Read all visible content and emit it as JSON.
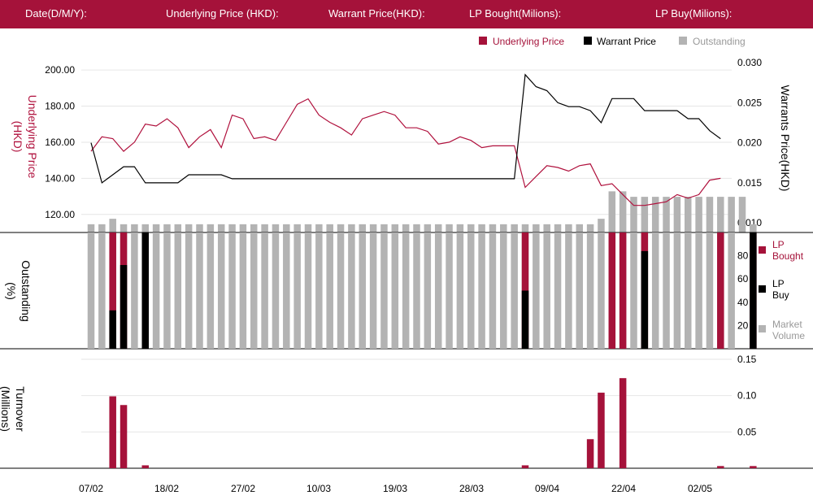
{
  "header": {
    "date_label": "Date(D/M/Y):",
    "underlying_label": "Underlying Price (HKD):",
    "warrant_label": "Warrant  Price(HKD):",
    "lp_bought_label": "LP Bought(Milions):",
    "lp_buy_label": "LP Buy(Milions):"
  },
  "legend_top": {
    "underlying": "Underlying Price",
    "warrant": "Warrant  Price",
    "outstanding": "Outstanding"
  },
  "legend_mid": {
    "lp_bought": [
      "LP",
      "Bought"
    ],
    "lp_buy": [
      "LP",
      "Buy"
    ],
    "market_volume": [
      "Market",
      "Volume"
    ]
  },
  "axis_titles": {
    "left_top": [
      "Underlying Price",
      "(HKD)"
    ],
    "right_top": "Warrants  Price(HKD)",
    "left_mid": [
      "Outstanding",
      "(%)"
    ],
    "left_bottom": [
      "Turnover",
      "(Millions)"
    ]
  },
  "colors": {
    "header": "#a5123a",
    "underlying": "#b0113d",
    "warrant": "#000000",
    "outstanding": "#b3b3b3",
    "lp_bought": "#a5123a",
    "lp_buy": "#000000"
  },
  "chart_data": [
    {
      "type": "line",
      "x_ticks": [
        "07/02",
        "18/02",
        "27/02",
        "10/03",
        "19/03",
        "28/03",
        "09/04",
        "22/04",
        "02/05"
      ],
      "left_axis": {
        "ticks": [
          "120.00",
          "140.00",
          "160.00",
          "180.00",
          "200.00"
        ],
        "ylim": [
          110,
          205
        ]
      },
      "right_axis": {
        "ticks": [
          "0.010",
          "0.015",
          "0.020",
          "0.025",
          "0.030"
        ],
        "ylim": [
          0.0088,
          0.0302
        ]
      },
      "series": [
        {
          "name": "Underlying Price",
          "axis": "left",
          "values": [
            155,
            163,
            162,
            155,
            160,
            170,
            169,
            173,
            168,
            157,
            163,
            167,
            157,
            175,
            173,
            162,
            163,
            161,
            171,
            181,
            184,
            175,
            171,
            168,
            164,
            173,
            175,
            177,
            175,
            168,
            168,
            166,
            159,
            160,
            163,
            161,
            157,
            158,
            158,
            158,
            135,
            141,
            147,
            146,
            144,
            147,
            148,
            136,
            137,
            131,
            125,
            125,
            126,
            127,
            131,
            129,
            131,
            139,
            140
          ],
          "x_index_start": 0
        },
        {
          "name": "Warrant  Price",
          "axis": "right",
          "values": [
            0.02,
            0.015,
            0.016,
            0.017,
            0.017,
            0.015,
            0.015,
            0.015,
            0.015,
            0.016,
            0.016,
            0.016,
            0.016,
            0.0155,
            0.0155,
            0.0155,
            0.0155,
            0.0155,
            0.0155,
            0.0155,
            0.0155,
            0.0155,
            0.0155,
            0.0155,
            0.0155,
            0.0155,
            0.0155,
            0.0155,
            0.0155,
            0.0155,
            0.0155,
            0.0155,
            0.0155,
            0.0155,
            0.0155,
            0.0155,
            0.0155,
            0.0155,
            0.0155,
            0.0155,
            0.0285,
            0.027,
            0.0265,
            0.025,
            0.0245,
            0.0245,
            0.024,
            0.0225,
            0.0255,
            0.0255,
            0.0255,
            0.024,
            0.024,
            0.024,
            0.024,
            0.023,
            0.023,
            0.0215,
            0.0205
          ],
          "x_index_start": 0
        }
      ],
      "outstanding_bars": [
        3,
        3,
        5,
        3,
        3,
        3,
        3,
        3,
        3,
        3,
        3,
        3,
        3,
        3,
        3,
        3,
        3,
        3,
        3,
        3,
        3,
        3,
        3,
        3,
        3,
        3,
        3,
        3,
        3,
        3,
        3,
        3,
        3,
        3,
        3,
        3,
        3,
        3,
        3,
        3,
        3,
        3,
        3,
        3,
        3,
        3,
        3,
        5,
        15,
        15,
        13,
        13,
        13,
        13,
        13,
        13,
        13,
        13,
        13,
        13,
        13,
        3
      ]
    },
    {
      "type": "bar",
      "ylabel": "Outstanding (%)",
      "y_ticks": [
        "20",
        "40",
        "60",
        "80"
      ],
      "ylim": [
        0,
        100
      ],
      "market_volume": [
        100,
        100,
        100,
        100,
        100,
        100,
        100,
        100,
        100,
        100,
        100,
        100,
        100,
        100,
        100,
        100,
        100,
        100,
        100,
        100,
        100,
        100,
        100,
        100,
        100,
        100,
        100,
        100,
        100,
        100,
        100,
        100,
        100,
        100,
        100,
        100,
        100,
        100,
        100,
        100,
        100,
        100,
        100,
        100,
        100,
        100,
        100,
        100,
        100,
        100,
        100,
        100,
        100,
        100,
        100,
        100,
        100,
        100,
        100,
        100
      ],
      "lp_bought": [
        0,
        0,
        100,
        100,
        0,
        0,
        0,
        0,
        0,
        0,
        0,
        0,
        0,
        0,
        0,
        0,
        0,
        0,
        0,
        0,
        0,
        0,
        0,
        0,
        0,
        0,
        0,
        0,
        0,
        0,
        0,
        0,
        0,
        0,
        0,
        0,
        0,
        0,
        0,
        0,
        100,
        0,
        0,
        0,
        0,
        0,
        0,
        0,
        100,
        100,
        0,
        100,
        0,
        0,
        0,
        0,
        0,
        0,
        100,
        0,
        0,
        100
      ],
      "lp_buy": [
        0,
        0,
        33,
        72,
        0,
        100,
        0,
        0,
        0,
        0,
        0,
        0,
        0,
        0,
        0,
        0,
        0,
        0,
        0,
        0,
        0,
        0,
        0,
        0,
        0,
        0,
        0,
        0,
        0,
        0,
        0,
        0,
        0,
        0,
        0,
        0,
        0,
        0,
        0,
        0,
        50,
        0,
        0,
        0,
        0,
        0,
        0,
        0,
        0,
        0,
        0,
        84,
        0,
        0,
        0,
        0,
        0,
        0,
        0,
        0,
        0,
        100
      ]
    },
    {
      "type": "bar",
      "ylabel": "Turnover (Millions)",
      "y_ticks": [
        "0.05",
        "0.10",
        "0.15"
      ],
      "ylim": [
        0,
        0.16
      ],
      "values": [
        0,
        0,
        0.099,
        0.087,
        0,
        0.004,
        0,
        0,
        0,
        0,
        0,
        0,
        0,
        0,
        0,
        0,
        0,
        0,
        0,
        0,
        0,
        0,
        0,
        0,
        0,
        0,
        0,
        0,
        0,
        0,
        0,
        0,
        0,
        0,
        0,
        0,
        0,
        0,
        0,
        0,
        0.004,
        0,
        0,
        0,
        0,
        0,
        0.04,
        0.104,
        0,
        0.124,
        0,
        0,
        0,
        0,
        0,
        0,
        0,
        0,
        0.003,
        0,
        0,
        0.003
      ]
    }
  ]
}
